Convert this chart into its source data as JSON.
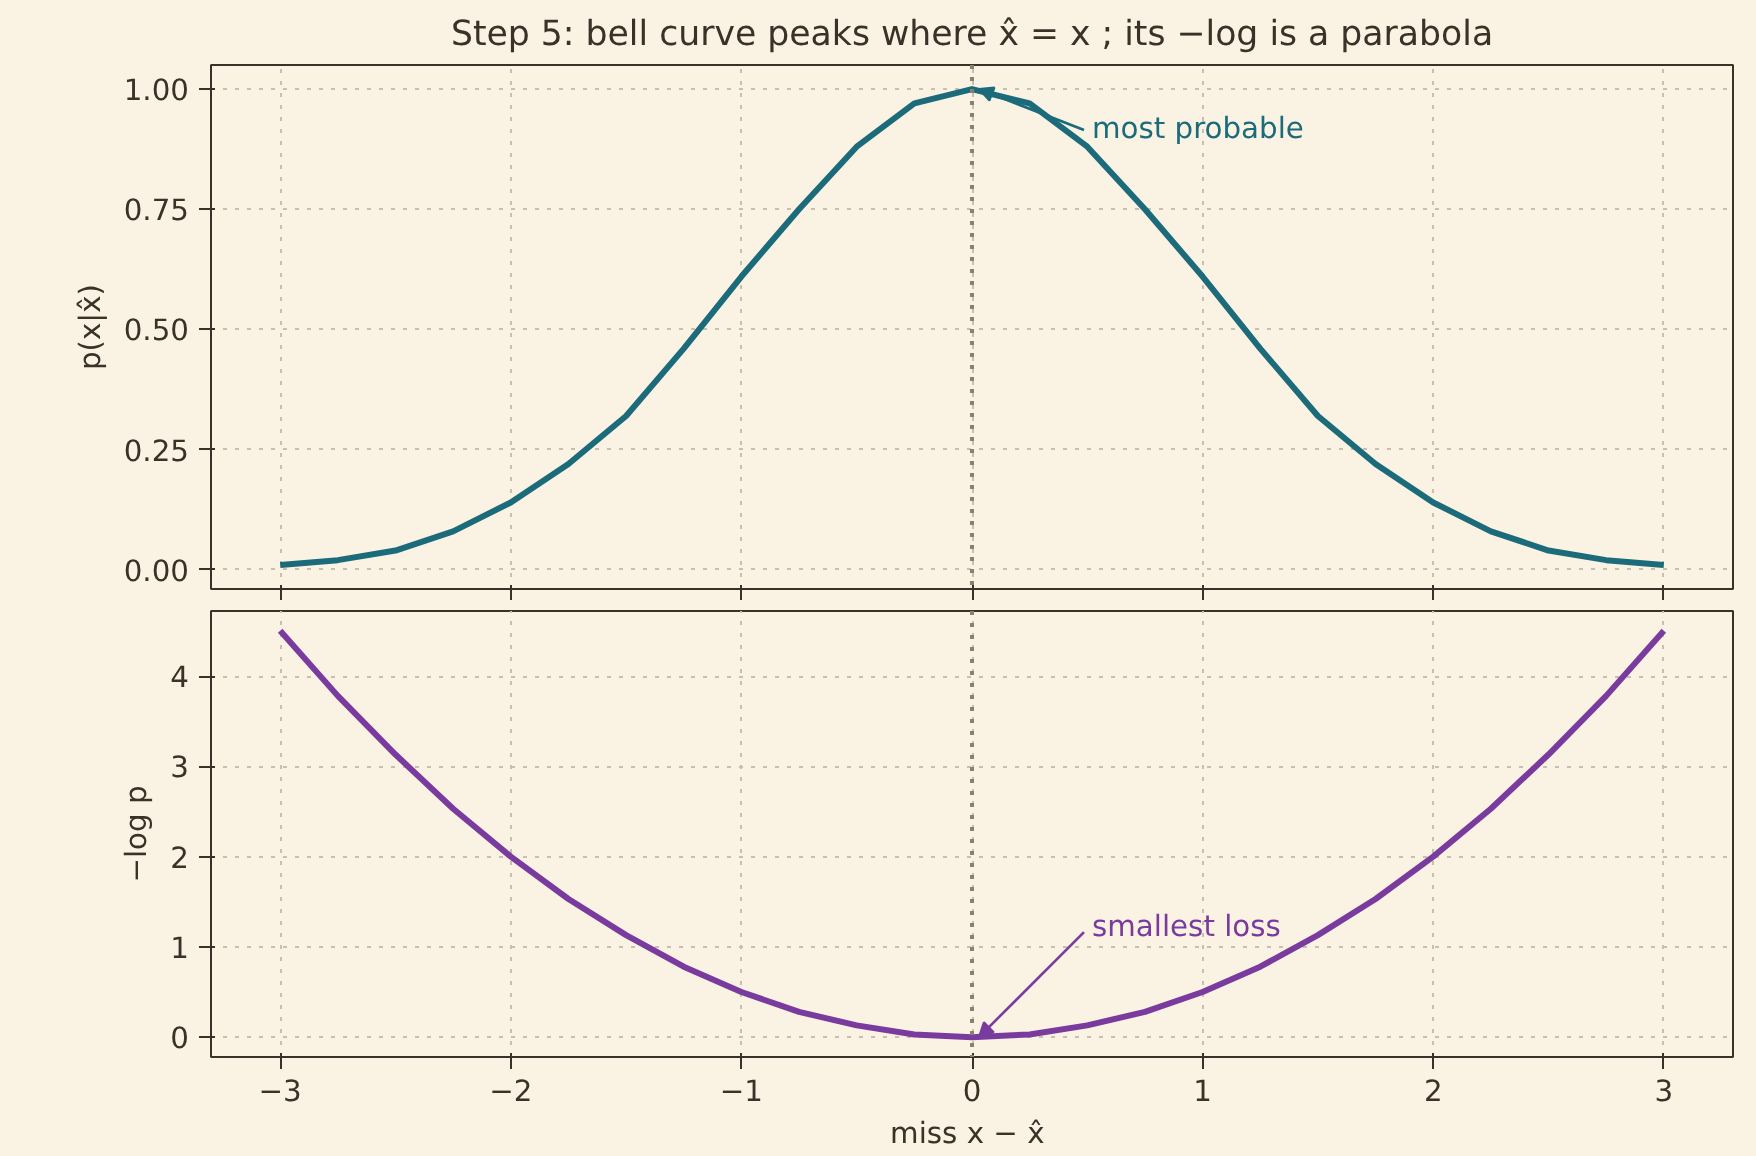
{
  "chart_data": [
    {
      "type": "line",
      "title": "Step 5: bell curve peaks where x̂ = x ; its −log is a parabola",
      "ylabel": "p(x|x̂)",
      "x": [
        -3,
        -2.75,
        -2.5,
        -2.25,
        -2,
        -1.75,
        -1.5,
        -1.25,
        -1,
        -0.75,
        -0.5,
        -0.25,
        0,
        0.25,
        0.5,
        0.75,
        1,
        1.25,
        1.5,
        1.75,
        2,
        2.25,
        2.5,
        2.75,
        3
      ],
      "series": [
        {
          "color": "#1b6b7b",
          "values": [
            0.01,
            0.02,
            0.04,
            0.08,
            0.14,
            0.22,
            0.32,
            0.46,
            0.61,
            0.75,
            0.88,
            0.97,
            1.0,
            0.97,
            0.88,
            0.75,
            0.61,
            0.46,
            0.32,
            0.22,
            0.14,
            0.08,
            0.04,
            0.02,
            0.01
          ]
        }
      ],
      "xlim": [
        -3.3,
        3.3
      ],
      "xticks": [
        -3,
        -2,
        -1,
        0,
        1,
        2,
        3
      ],
      "ylim": [
        -0.04,
        1.05
      ],
      "yticks": [
        {
          "value": 0,
          "label": "0.00"
        },
        {
          "value": 0.25,
          "label": "0.25"
        },
        {
          "value": 0.5,
          "label": "0.50"
        },
        {
          "value": 0.75,
          "label": "0.75"
        },
        {
          "value": 1,
          "label": "1.00"
        }
      ],
      "tick_labels": "y",
      "grid": true,
      "line_style": "solid",
      "ref_lines": [
        {
          "axis": "x",
          "value": 0,
          "color": "#8a8070",
          "line_style": "dotted"
        }
      ],
      "annotations": [
        {
          "text": "most probable",
          "x": 0,
          "y": 1.0
        }
      ]
    },
    {
      "type": "line",
      "ylabel": "−log p",
      "xlabel": "miss  x − x̂",
      "x": [
        -3,
        -2.75,
        -2.5,
        -2.25,
        -2,
        -1.75,
        -1.5,
        -1.25,
        -1,
        -0.75,
        -0.5,
        -0.25,
        0,
        0.25,
        0.5,
        0.75,
        1,
        1.25,
        1.5,
        1.75,
        2,
        2.25,
        2.5,
        2.75,
        3
      ],
      "series": [
        {
          "color": "#7a3b9e",
          "values": [
            4.5,
            3.78,
            3.13,
            2.53,
            2.0,
            1.53,
            1.13,
            0.78,
            0.5,
            0.28,
            0.13,
            0.03,
            0,
            0.03,
            0.13,
            0.28,
            0.5,
            0.78,
            1.13,
            1.53,
            2.0,
            2.53,
            3.13,
            3.78,
            4.5
          ]
        }
      ],
      "xlim": [
        -3.3,
        3.3
      ],
      "xticks": [
        -3,
        -2,
        -1,
        0,
        1,
        2,
        3
      ],
      "ylim": [
        -0.22,
        4.72
      ],
      "yticks": [
        0,
        1,
        2,
        3,
        4
      ],
      "grid": true,
      "line_style": "solid",
      "ref_lines": [
        {
          "axis": "x",
          "value": 0,
          "color": "#8a8070",
          "line_style": "dotted"
        }
      ],
      "annotations": [
        {
          "text": "smallest loss",
          "x": 0,
          "y": 0
        }
      ]
    }
  ]
}
